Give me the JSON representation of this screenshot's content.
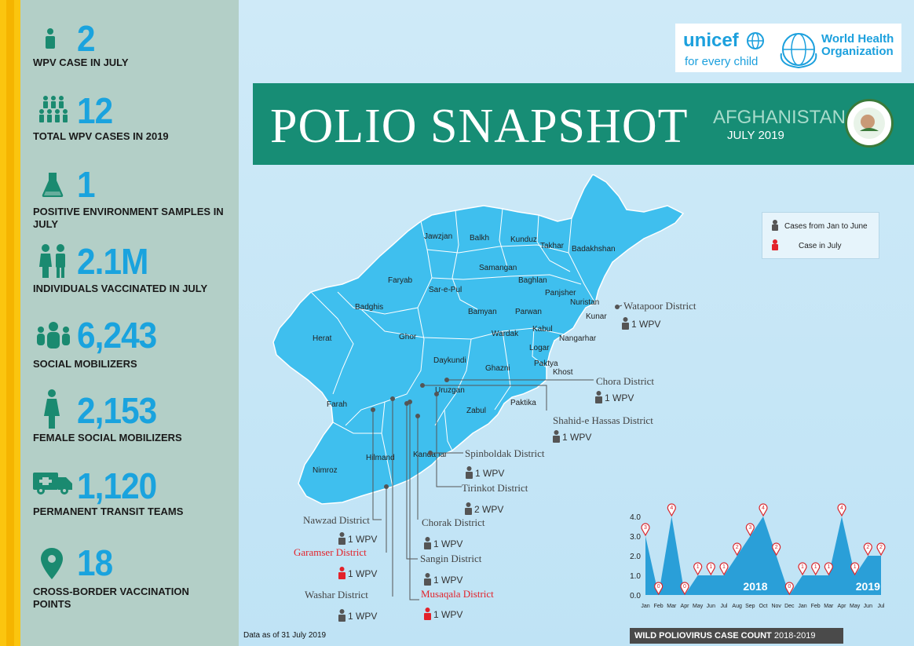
{
  "sidebar": {
    "stats": [
      {
        "value": "2",
        "label": "WPV CASE IN JULY",
        "icon": "person-icon"
      },
      {
        "value": "12",
        "label": "TOTAL WPV CASES IN 2019",
        "icon": "people-group-icon"
      },
      {
        "value": "1",
        "label": "POSITIVE ENVIRONMENT SAMPLES IN JULY",
        "icon": "flask-icon"
      },
      {
        "value": "2.1M",
        "label": "INDIVIDUALS VACCINATED IN JULY",
        "icon": "children-icon"
      },
      {
        "value": "6,243",
        "label": "SOCIAL MOBILIZERS",
        "icon": "crowd-icon"
      },
      {
        "value": "2,153",
        "label": "FEMALE SOCIAL MOBILIZERS",
        "icon": "woman-icon"
      },
      {
        "value": "1,120",
        "label": "PERMANENT TRANSIT TEAMS",
        "icon": "ambulance-icon"
      },
      {
        "value": "18",
        "label": "CROSS-BORDER VACCINATION POINTS",
        "icon": "location-pin-icon"
      }
    ]
  },
  "logos": {
    "unicef_name": "unicef",
    "unicef_tagline": "for every child",
    "who_line1": "World Health",
    "who_line2": "Organization"
  },
  "banner": {
    "title": "POLIO SNAPSHOT",
    "country": "AFGHANISTAN",
    "date": "JULY 2019"
  },
  "legend": {
    "jan_june": "Cases from Jan to June",
    "july": "Case in July"
  },
  "colors": {
    "map_fill": "#3fbfee",
    "banner": "#178d75",
    "accent": "#1aa3de",
    "july_case": "#e3222a",
    "earlier_case": "#555555"
  },
  "map": {
    "provinces": [
      "Jawzjan",
      "Balkh",
      "Kunduz",
      "Takhar",
      "Badakhshan",
      "Faryab",
      "Samangan",
      "Baghlan",
      "Sar-e-Pul",
      "Panjsher",
      "Nuristan",
      "Badghis",
      "Bamyan",
      "Parwan",
      "Kunar",
      "Kabul",
      "Herat",
      "Ghor",
      "Wardak",
      "Nangarhar",
      "Logar",
      "Daykundi",
      "Paktya",
      "Ghazni",
      "Khost",
      "Uruzgan",
      "Farah",
      "Zabul",
      "Paktika",
      "Hilmand",
      "Kandahar",
      "Nimroz"
    ],
    "districts": [
      {
        "name": "Watapoor District",
        "wpv": "1 WPV",
        "july": false
      },
      {
        "name": "Chora District",
        "wpv": "1 WPV",
        "july": false
      },
      {
        "name": "Shahid-e Hassas District",
        "wpv": "1 WPV",
        "july": false
      },
      {
        "name": "Spinboldak District",
        "wpv": "1 WPV",
        "july": false
      },
      {
        "name": "Tirinkot District",
        "wpv": "2 WPV",
        "july": false
      },
      {
        "name": "Nawzad District",
        "wpv": "1 WPV",
        "july": false
      },
      {
        "name": "Chorak District",
        "wpv": "1 WPV",
        "july": false
      },
      {
        "name": "Garamser District",
        "wpv": "1 WPV",
        "july": true
      },
      {
        "name": "Sangin District",
        "wpv": "1 WPV",
        "july": false
      },
      {
        "name": "Washar District",
        "wpv": "1 WPV",
        "july": false
      },
      {
        "name": "Musaqala District",
        "wpv": "1 WPV",
        "july": true
      }
    ]
  },
  "footnote": "Data as of 31 July 2019",
  "chart_caption": {
    "bold": "WILD POLIOVIRUS CASE COUNT",
    "rest": "2018-2019"
  },
  "chart_data": {
    "type": "area",
    "title": "WILD POLIOVIRUS CASE COUNT 2018-2019",
    "categories": [
      "Jan",
      "Feb",
      "Mar",
      "Apr",
      "May",
      "Jun",
      "Jul",
      "Aug",
      "Sep",
      "Oct",
      "Nov",
      "Dec",
      "Jan",
      "Feb",
      "Mar",
      "Apr",
      "May",
      "Jun",
      "Jul"
    ],
    "values": [
      3,
      0,
      4,
      0,
      1,
      1,
      1,
      2,
      3,
      4,
      2,
      0,
      1,
      1,
      1,
      4,
      1,
      2,
      2
    ],
    "year_labels": [
      "2018",
      "2019"
    ],
    "y_ticks": [
      "4.0",
      "3.0",
      "2.0",
      "1.0",
      "0.0"
    ],
    "ylim": [
      0,
      4
    ],
    "grid": false
  }
}
